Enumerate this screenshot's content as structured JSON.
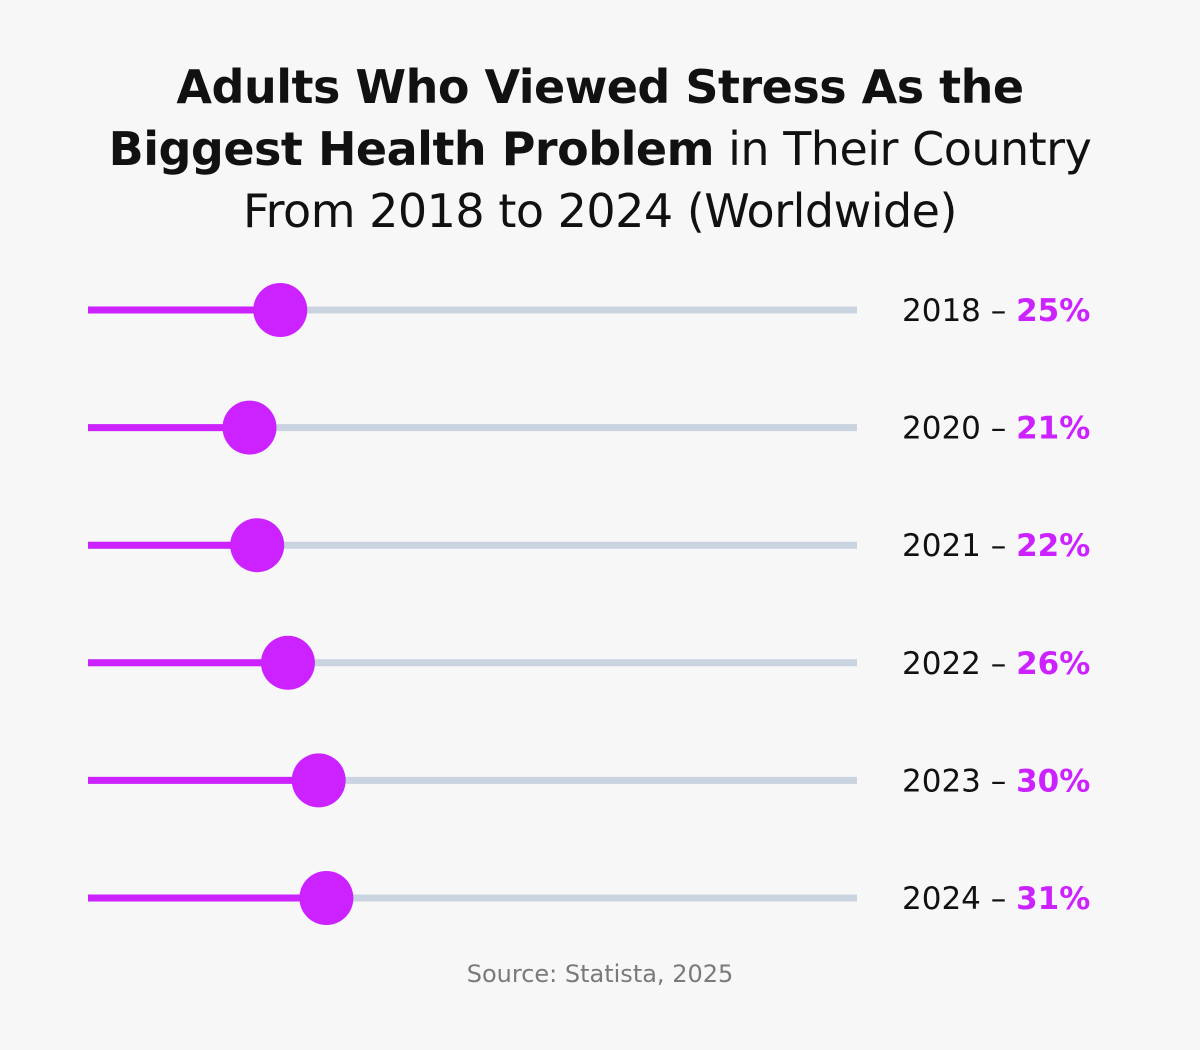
{
  "title": {
    "line1_bold": "Adults Who Viewed Stress As the",
    "line2_bold": "Biggest Health Problem",
    "line2_regular": " in Their Country",
    "line3_regular": "From 2018 to 2024 (Worldwide)"
  },
  "chart_data": {
    "type": "bar",
    "categories": [
      "2018",
      "2020",
      "2021",
      "2022",
      "2023",
      "2024"
    ],
    "values": [
      25,
      21,
      22,
      26,
      30,
      31
    ],
    "value_labels": [
      "25%",
      "21%",
      "22%",
      "26%",
      "30%",
      "31%"
    ],
    "separator": " – ",
    "ylim": [
      0,
      100
    ],
    "colors": {
      "fill": "#cc22ff",
      "track": "#c9d4e0",
      "value_text": "#cc22ff",
      "label_text": "#111111"
    }
  },
  "source": "Source: Statista, 2025"
}
